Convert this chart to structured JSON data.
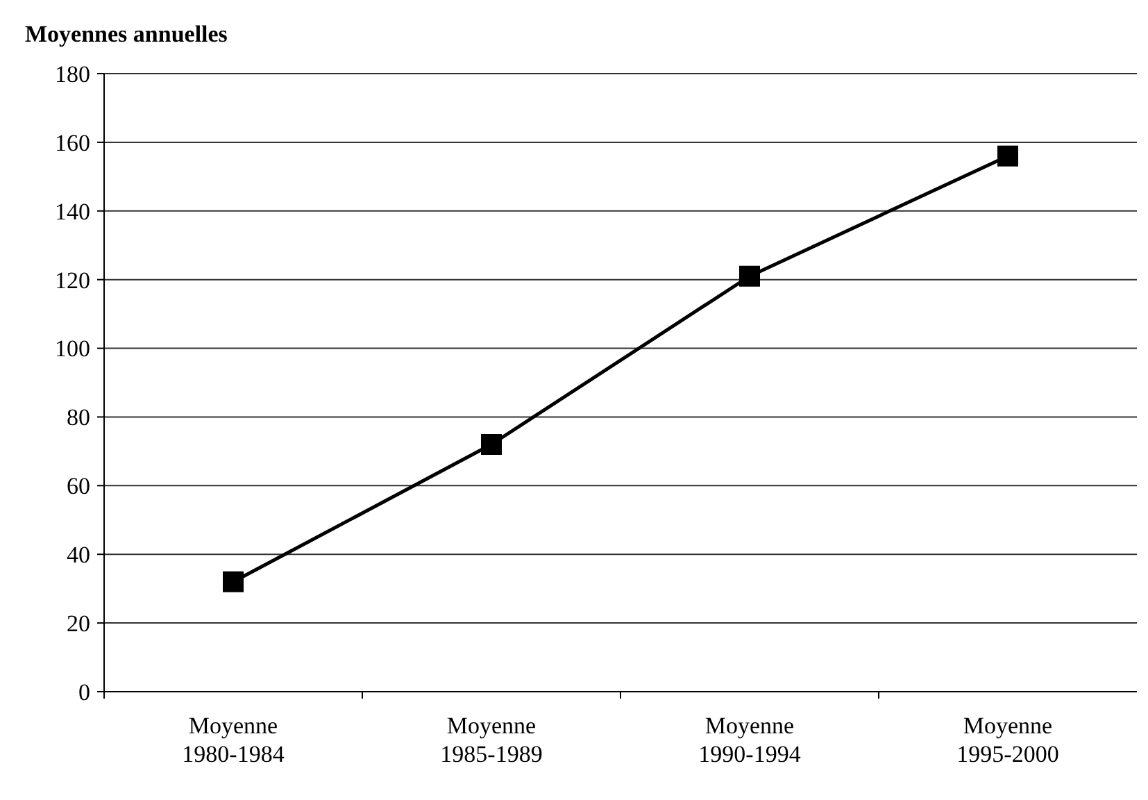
{
  "chart_data": {
    "type": "line",
    "title": "Moyennes annuelles",
    "categories": [
      "Moyenne\n1980-1984",
      "Moyenne\n1985-1989",
      "Moyenne\n1990-1994",
      "Moyenne\n1995-2000"
    ],
    "series": [
      {
        "color": "#000000",
        "values": [
          32,
          72,
          121,
          156
        ]
      }
    ],
    "ylim": [
      0,
      180
    ],
    "yticks": [
      0,
      20,
      40,
      60,
      80,
      100,
      120,
      140,
      160,
      180
    ],
    "grid": "y",
    "marker": "square",
    "line_style": "solid"
  }
}
